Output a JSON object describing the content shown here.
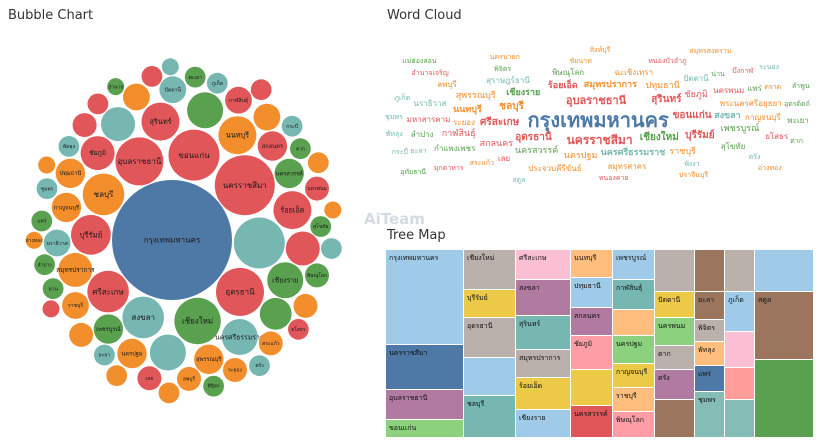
{
  "panels": {
    "bubble_title": "Bubble Chart",
    "cloud_title": "Word Cloud",
    "tree_title": "Tree Map",
    "watermark": "AiTeam"
  },
  "colors": {
    "blue": "#4e79a7",
    "orange": "#f28e2b",
    "red": "#e15759",
    "teal": "#76b7b2",
    "green": "#59a14f",
    "yellow": "#edc948",
    "purple": "#b07aa1",
    "pink": "#ff9da7",
    "brown": "#9c755f",
    "gray": "#bab0ac",
    "lightblue": "#a0cbe8",
    "lightgreen": "#8cd17d",
    "lightpink": "#fabfd2",
    "lightteal": "#86bcb6",
    "lightorange": "#ffbe7d",
    "lightred": "#ff9d9a"
  },
  "chart_data": [
    {
      "type": "bubble",
      "title": "Bubble Chart",
      "bubbles": [
        {
          "label": "กรุงเทพมหานคร",
          "value": 100,
          "color": "blue"
        },
        {
          "label": "นครราชสีมา",
          "value": 25,
          "color": "red"
        },
        {
          "label": "ขอนแก่น",
          "value": 18,
          "color": "red"
        },
        {
          "label": "อุดรธานี",
          "value": 16,
          "color": "red"
        },
        {
          "label": "อุบลราชธานี",
          "value": 16,
          "color": "red"
        },
        {
          "label": "เชียงใหม่",
          "value": 15,
          "color": "green"
        },
        {
          "label": "ชลบุรี",
          "value": 12,
          "color": "orange"
        },
        {
          "label": "สงขลา",
          "value": 12,
          "color": "teal"
        },
        {
          "label": "ศรีสะเกษ",
          "value": 12,
          "color": "red"
        },
        {
          "label": "บุรีรัมย์",
          "value": 11,
          "color": "red"
        },
        {
          "label": "นนทบุรี",
          "value": 10,
          "color": "orange"
        },
        {
          "label": "สุรินทร์",
          "value": 10,
          "color": "red"
        },
        {
          "label": "ร้อยเอ็ด",
          "value": 10,
          "color": "red"
        },
        {
          "label": "เชียงราย",
          "value": 9,
          "color": "green"
        },
        {
          "label": "นครศรีธรรมราช",
          "value": 9,
          "color": "teal"
        },
        {
          "label": "ชัยภูมิ",
          "value": 8,
          "color": "red"
        },
        {
          "label": "สมุทรปราการ",
          "value": 8,
          "color": "orange"
        },
        {
          "label": "เพชรบูรณ์",
          "value": 6,
          "color": "green"
        },
        {
          "label": "นครสวรรค์",
          "value": 6,
          "color": "green"
        },
        {
          "label": "สกลนคร",
          "value": 6,
          "color": "red"
        },
        {
          "label": "สุพรรณบุรี",
          "value": 6,
          "color": "orange"
        },
        {
          "label": "กาญจนบุรี",
          "value": 6,
          "color": "orange"
        },
        {
          "label": "นครปฐม",
          "value": 6,
          "color": "orange"
        },
        {
          "label": "ปทุมธานี",
          "value": 6,
          "color": "orange"
        },
        {
          "label": "นราธิวาส",
          "value": 5,
          "color": "teal"
        },
        {
          "label": "ราชบุรี",
          "value": 5,
          "color": "orange"
        },
        {
          "label": "ปัตตานี",
          "value": 5,
          "color": "teal"
        },
        {
          "label": "สระแก้ว",
          "value": 4,
          "color": "orange"
        },
        {
          "label": "กาฬสินธุ์",
          "value": 5,
          "color": "red"
        },
        {
          "label": "ลพบุรี",
          "value": 4,
          "color": "orange"
        },
        {
          "label": "ระยอง",
          "value": 4,
          "color": "orange"
        },
        {
          "label": "เลย",
          "value": 4,
          "color": "red"
        },
        {
          "label": "พิษณุโลก",
          "value": 4,
          "color": "green"
        },
        {
          "label": "นครพนม",
          "value": 4,
          "color": "red"
        },
        {
          "label": "สุโขทัย",
          "value": 3,
          "color": "green"
        },
        {
          "label": "ยะลา",
          "value": 3,
          "color": "teal"
        },
        {
          "label": "ตาก",
          "value": 3,
          "color": "green"
        },
        {
          "label": "พัทลุง",
          "value": 3,
          "color": "teal"
        },
        {
          "label": "ภูเก็ต",
          "value": 3,
          "color": "teal"
        },
        {
          "label": "น่าน",
          "value": 3,
          "color": "green"
        },
        {
          "label": "พะเยา",
          "value": 3,
          "color": "green"
        },
        {
          "label": "แพร่",
          "value": 3,
          "color": "green"
        },
        {
          "label": "ลำปาง",
          "value": 3,
          "color": "green"
        },
        {
          "label": "อำนาจ",
          "value": 2,
          "color": "green"
        },
        {
          "label": "ชุมพร",
          "value": 3,
          "color": "teal"
        },
        {
          "label": "ตรัง",
          "value": 3,
          "color": "teal"
        },
        {
          "label": "พิจิตร",
          "value": 3,
          "color": "green"
        },
        {
          "label": "ยโสธร",
          "value": 3,
          "color": "red"
        },
        {
          "label": "กระบี่",
          "value": 3,
          "color": "teal"
        },
        {
          "label": "อ่างทอง",
          "value": 2,
          "color": "orange"
        },
        {
          "label": "",
          "value": 18,
          "color": "teal"
        },
        {
          "label": "",
          "value": 8,
          "color": "teal"
        },
        {
          "label": "",
          "value": 9,
          "color": "teal"
        },
        {
          "label": "",
          "value": 8,
          "color": "red"
        },
        {
          "label": "",
          "value": 9,
          "color": "green"
        },
        {
          "label": "",
          "value": 7,
          "color": "green"
        },
        {
          "label": "",
          "value": 5,
          "color": "orange"
        },
        {
          "label": "",
          "value": 5,
          "color": "orange"
        },
        {
          "label": "",
          "value": 4,
          "color": "orange"
        },
        {
          "label": "",
          "value": 4,
          "color": "orange"
        },
        {
          "label": "",
          "value": 4,
          "color": "red"
        },
        {
          "label": "",
          "value": 3,
          "color": "red"
        },
        {
          "label": "",
          "value": 3,
          "color": "red"
        },
        {
          "label": "",
          "value": 3,
          "color": "orange"
        },
        {
          "label": "",
          "value": 3,
          "color": "orange"
        },
        {
          "label": "",
          "value": 3,
          "color": "teal"
        },
        {
          "label": "",
          "value": 3,
          "color": "orange"
        },
        {
          "label": "",
          "value": 2,
          "color": "orange"
        },
        {
          "label": "",
          "value": 2,
          "color": "orange"
        },
        {
          "label": "",
          "value": 3,
          "color": "red"
        },
        {
          "label": "",
          "value": 2,
          "color": "red"
        },
        {
          "label": "",
          "value": 2,
          "color": "teal"
        }
      ]
    },
    {
      "type": "wordcloud",
      "title": "Word Cloud",
      "words": [
        {
          "text": "กรุงเทพมหานคร",
          "weight": 100,
          "color": "blue"
        },
        {
          "text": "นครราชสีมา",
          "weight": 40,
          "color": "red"
        },
        {
          "text": "อุบลราชธานี",
          "weight": 34,
          "color": "red"
        },
        {
          "text": "ขอนแก่น",
          "weight": 30,
          "color": "red"
        },
        {
          "text": "เชียงใหม่",
          "weight": 30,
          "color": "green"
        },
        {
          "text": "อุดรธานี",
          "weight": 28,
          "color": "red"
        },
        {
          "text": "ศรีสะเกษ",
          "weight": 28,
          "color": "red"
        },
        {
          "text": "ชลบุรี",
          "weight": 27,
          "color": "orange"
        },
        {
          "text": "สุรินทร์",
          "weight": 26,
          "color": "red"
        },
        {
          "text": "บุรีรัมย์",
          "weight": 26,
          "color": "red"
        },
        {
          "text": "เชียงราย",
          "weight": 24,
          "color": "green"
        },
        {
          "text": "นนทบุรี",
          "weight": 24,
          "color": "orange"
        },
        {
          "text": "ร้อยเอ็ด",
          "weight": 24,
          "color": "red"
        },
        {
          "text": "สงขลา",
          "weight": 24,
          "color": "teal"
        },
        {
          "text": "นครศรีธรรมราช",
          "weight": 24,
          "color": "teal"
        },
        {
          "text": "สมุทรปราการ",
          "weight": 22,
          "color": "orange"
        },
        {
          "text": "นครสวรรค์",
          "weight": 20,
          "color": "green"
        },
        {
          "text": "ชัยภูมิ",
          "weight": 20,
          "color": "red"
        },
        {
          "text": "ปทุมธานี",
          "weight": 20,
          "color": "orange"
        },
        {
          "text": "เพชรบูรณ์",
          "weight": 20,
          "color": "green"
        },
        {
          "text": "สกลนคร",
          "weight": 20,
          "color": "red"
        },
        {
          "text": "นครปฐม",
          "weight": 18,
          "color": "orange"
        },
        {
          "text": "กาฬสินธุ์",
          "weight": 18,
          "color": "red"
        },
        {
          "text": "สุพรรณบุรี",
          "weight": 18,
          "color": "orange"
        },
        {
          "text": "ราชบุรี",
          "weight": 18,
          "color": "orange"
        },
        {
          "text": "พระนครศรีอยุธยา",
          "weight": 16,
          "color": "orange"
        },
        {
          "text": "มหาสารคาม",
          "weight": 16,
          "color": "red"
        },
        {
          "text": "สุราษฎร์ธานี",
          "weight": 16,
          "color": "teal"
        },
        {
          "text": "กาญจนบุรี",
          "weight": 16,
          "color": "orange"
        },
        {
          "text": "นครพนม",
          "weight": 15,
          "color": "red"
        },
        {
          "text": "นราธิวาส",
          "weight": 15,
          "color": "teal"
        },
        {
          "text": "สุโขทัย",
          "weight": 14,
          "color": "green"
        },
        {
          "text": "กำแพงเพชร",
          "weight": 14,
          "color": "green"
        },
        {
          "text": "ลำปาง",
          "weight": 14,
          "color": "green"
        },
        {
          "text": "พิษณุโลก",
          "weight": 14,
          "color": "green"
        },
        {
          "text": "ฉะเชิงเทรา",
          "weight": 14,
          "color": "orange"
        },
        {
          "text": "สมุทรสาคร",
          "weight": 14,
          "color": "orange"
        },
        {
          "text": "ระยอง",
          "weight": 14,
          "color": "orange"
        },
        {
          "text": "ปัตตานี",
          "weight": 12,
          "color": "teal"
        },
        {
          "text": "ยโสธร",
          "weight": 12,
          "color": "red"
        },
        {
          "text": "เลย",
          "weight": 12,
          "color": "red"
        },
        {
          "text": "พะเยา",
          "weight": 12,
          "color": "green"
        },
        {
          "text": "ประจวบคีรีขันธ์",
          "weight": 11,
          "color": "orange"
        },
        {
          "text": "แพร่",
          "weight": 11,
          "color": "green"
        },
        {
          "text": "ลพบุรี",
          "weight": 11,
          "color": "orange"
        },
        {
          "text": "พังงา",
          "weight": 10,
          "color": "teal"
        },
        {
          "text": "ชุมพร",
          "weight": 10,
          "color": "teal"
        },
        {
          "text": "อุตรดิตถ์",
          "weight": 10,
          "color": "green"
        },
        {
          "text": "สระแก้ว",
          "weight": 10,
          "color": "orange"
        },
        {
          "text": "พัทลุง",
          "weight": 10,
          "color": "teal"
        },
        {
          "text": "ภูเก็ต",
          "weight": 9,
          "color": "teal"
        },
        {
          "text": "ตราด",
          "weight": 9,
          "color": "orange"
        },
        {
          "text": "น่าน",
          "weight": 9,
          "color": "green"
        },
        {
          "text": "ยะลา",
          "weight": 9,
          "color": "teal"
        },
        {
          "text": "ตาก",
          "weight": 9,
          "color": "green"
        },
        {
          "text": "พิจิตร",
          "weight": 9,
          "color": "green"
        },
        {
          "text": "ตรัง",
          "weight": 9,
          "color": "teal"
        },
        {
          "text": "ชัยนาท",
          "weight": 9,
          "color": "orange"
        },
        {
          "text": "หนองคาย",
          "weight": 9,
          "color": "red"
        },
        {
          "text": "หนองบัวลำภู",
          "weight": 9,
          "color": "red"
        },
        {
          "text": "บึงกาฬ",
          "weight": 9,
          "color": "red"
        },
        {
          "text": "ปราจีนบุรี",
          "weight": 9,
          "color": "orange"
        },
        {
          "text": "มุกดาหาร",
          "weight": 9,
          "color": "red"
        },
        {
          "text": "อำนาจเจริญ",
          "weight": 8,
          "color": "red"
        },
        {
          "text": "ลำพูน",
          "weight": 9,
          "color": "green"
        },
        {
          "text": "กระบี่",
          "weight": 8,
          "color": "teal"
        },
        {
          "text": "สตูล",
          "weight": 8,
          "color": "teal"
        },
        {
          "text": "อ่างทอง",
          "weight": 8,
          "color": "orange"
        },
        {
          "text": "นครนายก",
          "weight": 8,
          "color": "orange"
        },
        {
          "text": "ระนอง",
          "weight": 8,
          "color": "teal"
        },
        {
          "text": "สิงห์บุรี",
          "weight": 8,
          "color": "orange"
        },
        {
          "text": "อุทัยธานี",
          "weight": 8,
          "color": "green"
        },
        {
          "text": "แม่ฮ่องสอน",
          "weight": 7,
          "color": "green"
        },
        {
          "text": "สมุทรสงคราม",
          "weight": 7,
          "color": "orange"
        }
      ]
    },
    {
      "type": "treemap",
      "title": "Tree Map",
      "nodes": [
        {
          "label": "กรุงเทพมหานคร",
          "color": "lightblue"
        },
        {
          "label": "นครราชสีมา",
          "color": "blue"
        },
        {
          "label": "อุบลราชธานี",
          "color": "purple"
        },
        {
          "label": "ขอนแก่น",
          "color": "lightgreen"
        },
        {
          "label": "เชียงใหม่",
          "color": "gray"
        },
        {
          "label": "บุรีรัมย์",
          "color": "yellow"
        },
        {
          "label": "อุดรธานี",
          "color": "gray"
        },
        {
          "label": "",
          "color": "lightblue"
        },
        {
          "label": "ชลบุรี",
          "color": "teal"
        },
        {
          "label": "ศรีสะเกษ",
          "color": "lightpink"
        },
        {
          "label": "สงขลา",
          "color": "purple"
        },
        {
          "label": "สุรินทร์",
          "color": "teal"
        },
        {
          "label": "สมุทรปราการ",
          "color": "gray"
        },
        {
          "label": "ร้อยเอ็ด",
          "color": "yellow"
        },
        {
          "label": "เชียงราย",
          "color": "lightblue"
        },
        {
          "label": "นนทบุรี",
          "color": "lightorange"
        },
        {
          "label": "ปทุมธานี",
          "color": "lightblue"
        },
        {
          "label": "สกลนคร",
          "color": "purple"
        },
        {
          "label": "ชัยภูมิ",
          "color": "pink"
        },
        {
          "label": "",
          "color": "yellow"
        },
        {
          "label": "นครสวรรค์",
          "color": "red"
        },
        {
          "label": "เพชรบูรณ์",
          "color": "lightblue"
        },
        {
          "label": "กาฬสินธุ์",
          "color": "teal"
        },
        {
          "label": "",
          "color": "lightorange"
        },
        {
          "label": "นครปฐม",
          "color": "lightgreen"
        },
        {
          "label": "กาญจนบุรี",
          "color": "yellow"
        },
        {
          "label": "ราชบุรี",
          "color": "lightorange"
        },
        {
          "label": "พิษณุโลก",
          "color": "pink"
        },
        {
          "label": "",
          "color": "gray"
        },
        {
          "label": "",
          "color": "brown"
        },
        {
          "label": "",
          "color": "gray"
        },
        {
          "label": "",
          "color": "lightblue"
        },
        {
          "label": "ปัตตานี",
          "color": "yellow"
        },
        {
          "label": "นครพนม",
          "color": "lightgreen"
        },
        {
          "label": "ตาก",
          "color": "gray"
        },
        {
          "label": "ตรัง",
          "color": "purple"
        },
        {
          "label": "",
          "color": "brown"
        },
        {
          "label": "",
          "color": "lightpink"
        },
        {
          "label": "",
          "color": "lightred"
        },
        {
          "label": "",
          "color": "lightteal"
        },
        {
          "label": "",
          "color": "green"
        },
        {
          "label": "ยะลา",
          "color": "brown"
        },
        {
          "label": "พิจิตร",
          "color": "gray"
        },
        {
          "label": "พัทลุง",
          "color": "lightorange"
        },
        {
          "label": "แพร่",
          "color": "blue"
        },
        {
          "label": "ชุมพร",
          "color": "lightteal"
        },
        {
          "label": "ภูเก็ต",
          "color": "lightblue"
        },
        {
          "label": "สตูล",
          "color": "brown"
        }
      ]
    }
  ]
}
